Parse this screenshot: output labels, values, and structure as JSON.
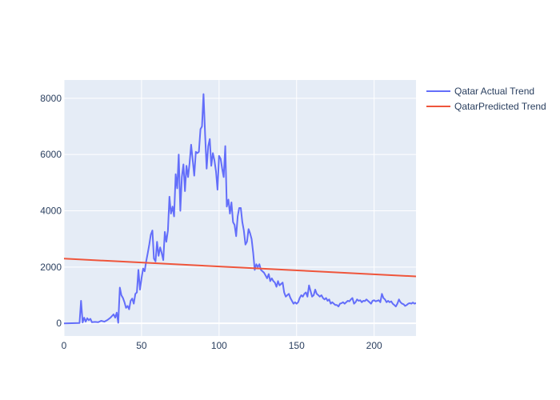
{
  "chart_data": {
    "type": "line",
    "title": "",
    "xlabel": "",
    "ylabel": "",
    "xlim": [
      0,
      227
    ],
    "ylim": [
      -450,
      8650
    ],
    "x_ticks": [
      0,
      50,
      100,
      150,
      200
    ],
    "y_ticks": [
      0,
      2000,
      4000,
      6000,
      8000
    ],
    "grid": true,
    "legend_position": "top-right",
    "colors": {
      "plot_bg": "#e5ecf6",
      "grid": "#ffffff",
      "text": "#2a3f5f"
    },
    "series": [
      {
        "name": "Qatar Actual Trend",
        "color": "#636efa",
        "points": [
          [
            0,
            0
          ],
          [
            10,
            10
          ],
          [
            11,
            800
          ],
          [
            12,
            30
          ],
          [
            13,
            200
          ],
          [
            14,
            60
          ],
          [
            15,
            180
          ],
          [
            16,
            110
          ],
          [
            17,
            160
          ],
          [
            18,
            40
          ],
          [
            20,
            50
          ],
          [
            22,
            40
          ],
          [
            24,
            90
          ],
          [
            26,
            60
          ],
          [
            28,
            120
          ],
          [
            30,
            200
          ],
          [
            32,
            320
          ],
          [
            33,
            200
          ],
          [
            34,
            380
          ],
          [
            35,
            20
          ],
          [
            36,
            1270
          ],
          [
            37,
            1000
          ],
          [
            38,
            900
          ],
          [
            39,
            750
          ],
          [
            40,
            550
          ],
          [
            41,
            620
          ],
          [
            42,
            500
          ],
          [
            43,
            800
          ],
          [
            44,
            880
          ],
          [
            45,
            700
          ],
          [
            46,
            1050
          ],
          [
            47,
            1100
          ],
          [
            48,
            1900
          ],
          [
            49,
            1200
          ],
          [
            50,
            1600
          ],
          [
            51,
            1950
          ],
          [
            52,
            1850
          ],
          [
            53,
            2200
          ],
          [
            54,
            2500
          ],
          [
            55,
            2800
          ],
          [
            56,
            3150
          ],
          [
            57,
            3300
          ],
          [
            58,
            2300
          ],
          [
            59,
            2200
          ],
          [
            60,
            2900
          ],
          [
            61,
            2400
          ],
          [
            62,
            2700
          ],
          [
            63,
            2500
          ],
          [
            64,
            2250
          ],
          [
            65,
            3250
          ],
          [
            66,
            2900
          ],
          [
            67,
            3300
          ],
          [
            68,
            4500
          ],
          [
            69,
            3900
          ],
          [
            70,
            4150
          ],
          [
            71,
            3800
          ],
          [
            72,
            5300
          ],
          [
            73,
            4800
          ],
          [
            74,
            6000
          ],
          [
            75,
            4000
          ],
          [
            76,
            5200
          ],
          [
            77,
            5650
          ],
          [
            78,
            4700
          ],
          [
            79,
            5600
          ],
          [
            80,
            5200
          ],
          [
            81,
            5700
          ],
          [
            82,
            6350
          ],
          [
            83,
            5800
          ],
          [
            84,
            5250
          ],
          [
            85,
            6100
          ],
          [
            86,
            6050
          ],
          [
            87,
            6100
          ],
          [
            88,
            6900
          ],
          [
            89,
            7000
          ],
          [
            90,
            8150
          ],
          [
            91,
            6700
          ],
          [
            92,
            5500
          ],
          [
            93,
            6300
          ],
          [
            94,
            6550
          ],
          [
            95,
            5600
          ],
          [
            96,
            6050
          ],
          [
            97,
            5800
          ],
          [
            98,
            5400
          ],
          [
            99,
            4750
          ],
          [
            100,
            5950
          ],
          [
            101,
            5850
          ],
          [
            102,
            5500
          ],
          [
            103,
            5200
          ],
          [
            104,
            6300
          ],
          [
            105,
            4150
          ],
          [
            106,
            4400
          ],
          [
            107,
            3900
          ],
          [
            108,
            4300
          ],
          [
            109,
            3600
          ],
          [
            110,
            3500
          ],
          [
            111,
            3100
          ],
          [
            112,
            3800
          ],
          [
            113,
            4100
          ],
          [
            114,
            4100
          ],
          [
            115,
            3600
          ],
          [
            116,
            3300
          ],
          [
            117,
            2800
          ],
          [
            118,
            2900
          ],
          [
            119,
            3350
          ],
          [
            120,
            3200
          ],
          [
            121,
            3000
          ],
          [
            122,
            2500
          ],
          [
            123,
            1900
          ],
          [
            124,
            2100
          ],
          [
            125,
            2000
          ],
          [
            126,
            2100
          ],
          [
            127,
            1900
          ],
          [
            128,
            1850
          ],
          [
            129,
            1800
          ],
          [
            130,
            1700
          ],
          [
            131,
            1600
          ],
          [
            132,
            1750
          ],
          [
            133,
            1500
          ],
          [
            134,
            1600
          ],
          [
            135,
            1500
          ],
          [
            136,
            1450
          ],
          [
            137,
            1300
          ],
          [
            138,
            1500
          ],
          [
            139,
            1350
          ],
          [
            140,
            1400
          ],
          [
            141,
            1450
          ],
          [
            142,
            1100
          ],
          [
            143,
            950
          ],
          [
            144,
            1000
          ],
          [
            145,
            1050
          ],
          [
            146,
            900
          ],
          [
            147,
            800
          ],
          [
            148,
            700
          ],
          [
            149,
            750
          ],
          [
            150,
            700
          ],
          [
            151,
            750
          ],
          [
            152,
            900
          ],
          [
            153,
            1000
          ],
          [
            154,
            950
          ],
          [
            155,
            1050
          ],
          [
            156,
            1100
          ],
          [
            157,
            950
          ],
          [
            158,
            1350
          ],
          [
            159,
            1150
          ],
          [
            160,
            950
          ],
          [
            161,
            1000
          ],
          [
            162,
            1200
          ],
          [
            163,
            1050
          ],
          [
            164,
            1000
          ],
          [
            165,
            950
          ],
          [
            166,
            1000
          ],
          [
            167,
            900
          ],
          [
            168,
            850
          ],
          [
            169,
            900
          ],
          [
            170,
            800
          ],
          [
            171,
            850
          ],
          [
            172,
            700
          ],
          [
            173,
            750
          ],
          [
            174,
            700
          ],
          [
            175,
            650
          ],
          [
            176,
            650
          ],
          [
            177,
            600
          ],
          [
            178,
            700
          ],
          [
            179,
            720
          ],
          [
            180,
            750
          ],
          [
            181,
            700
          ],
          [
            182,
            750
          ],
          [
            183,
            800
          ],
          [
            184,
            780
          ],
          [
            185,
            850
          ],
          [
            186,
            900
          ],
          [
            187,
            700
          ],
          [
            188,
            750
          ],
          [
            189,
            850
          ],
          [
            190,
            800
          ],
          [
            191,
            820
          ],
          [
            192,
            750
          ],
          [
            193,
            800
          ],
          [
            194,
            790
          ],
          [
            195,
            850
          ],
          [
            196,
            800
          ],
          [
            197,
            750
          ],
          [
            198,
            700
          ],
          [
            199,
            800
          ],
          [
            200,
            820
          ],
          [
            201,
            780
          ],
          [
            202,
            800
          ],
          [
            203,
            820
          ],
          [
            204,
            750
          ],
          [
            205,
            1050
          ],
          [
            206,
            900
          ],
          [
            207,
            850
          ],
          [
            208,
            750
          ],
          [
            209,
            800
          ],
          [
            210,
            750
          ],
          [
            211,
            780
          ],
          [
            212,
            700
          ],
          [
            213,
            650
          ],
          [
            214,
            600
          ],
          [
            215,
            700
          ],
          [
            216,
            850
          ],
          [
            217,
            750
          ],
          [
            218,
            700
          ],
          [
            219,
            680
          ],
          [
            220,
            620
          ],
          [
            221,
            650
          ],
          [
            222,
            700
          ],
          [
            223,
            720
          ],
          [
            224,
            700
          ],
          [
            225,
            740
          ],
          [
            226,
            700
          ],
          [
            227,
            720
          ]
        ]
      },
      {
        "name": "QatarPredicted Trend",
        "color": "#ef553b",
        "points": [
          [
            0,
            2300
          ],
          [
            227,
            1670
          ]
        ]
      }
    ]
  }
}
